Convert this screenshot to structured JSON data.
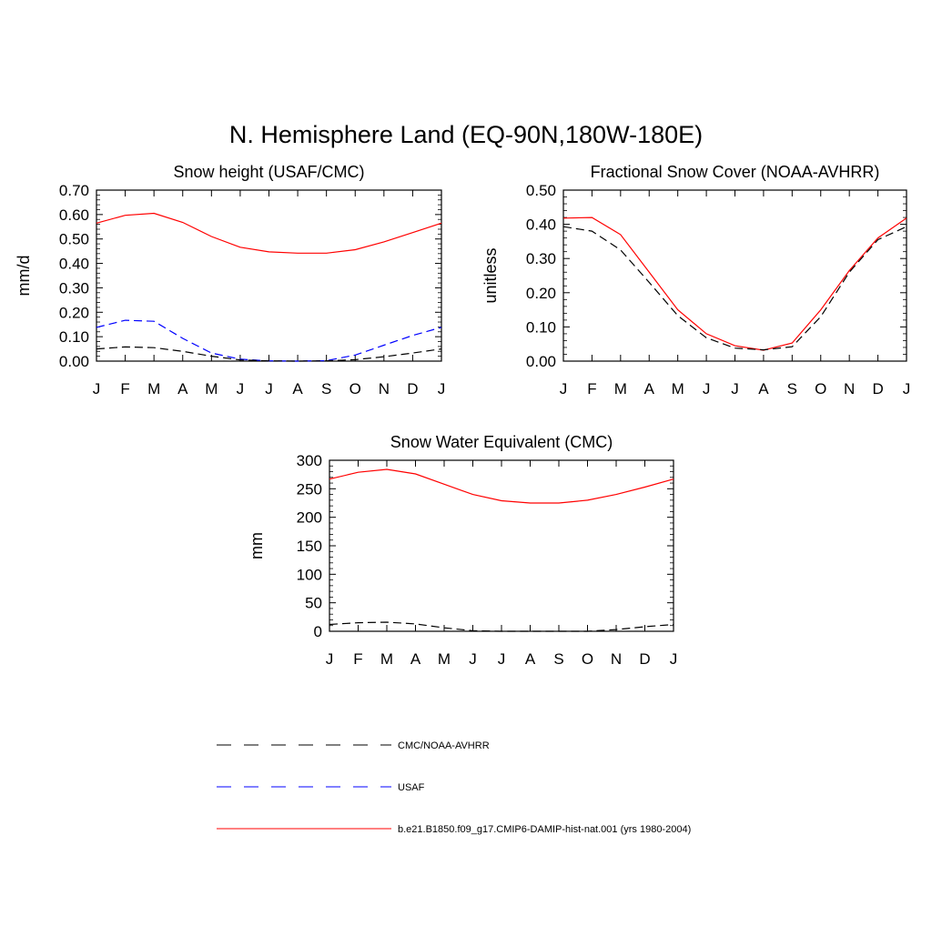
{
  "main_title": "N. Hemisphere Land (EQ-90N,180W-180E)",
  "month_labels": [
    "J",
    "F",
    "M",
    "A",
    "M",
    "J",
    "J",
    "A",
    "S",
    "O",
    "N",
    "D",
    "J"
  ],
  "legend": [
    {
      "label": "CMC/NOAA-AVHRR",
      "color": "#000000",
      "dashed": true
    },
    {
      "label": "USAF",
      "color": "#0000ff",
      "dashed": true
    },
    {
      "label": "b.e21.B1850.f09_g17.CMIP6-DAMIP-hist-nat.001 (yrs 1980-2004)",
      "color": "#ff0000",
      "dashed": false
    }
  ],
  "chart_data": [
    {
      "type": "line",
      "title": "Snow height (USAF/CMC)",
      "ylabel": "mm/d",
      "xlabel": "",
      "x": [
        "J",
        "F",
        "M",
        "A",
        "M",
        "J",
        "J",
        "A",
        "S",
        "O",
        "N",
        "D",
        "J"
      ],
      "ylim": [
        0,
        0.7
      ],
      "yticks": [
        "0.00",
        "0.10",
        "0.20",
        "0.30",
        "0.40",
        "0.50",
        "0.60",
        "0.70"
      ],
      "series": [
        {
          "name": "b.e21.B1850.f09_g17.CMIP6-DAMIP-hist-nat.001 (yrs 1980-2004)",
          "color": "#ff0000",
          "dashed": false,
          "values": [
            0.565,
            0.597,
            0.605,
            0.568,
            0.51,
            0.466,
            0.447,
            0.442,
            0.442,
            0.456,
            0.488,
            0.526,
            0.565
          ]
        },
        {
          "name": "USAF",
          "color": "#0000ff",
          "dashed": true,
          "values": [
            0.138,
            0.167,
            0.163,
            0.093,
            0.033,
            0.008,
            0.001,
            0.0,
            0.002,
            0.025,
            0.065,
            0.105,
            0.138
          ]
        },
        {
          "name": "CMC/NOAA-AVHRR",
          "color": "#000000",
          "dashed": true,
          "values": [
            0.05,
            0.058,
            0.055,
            0.04,
            0.02,
            0.005,
            0.001,
            0.0,
            0.001,
            0.006,
            0.018,
            0.033,
            0.05
          ]
        }
      ]
    },
    {
      "type": "line",
      "title": "Fractional Snow Cover (NOAA-AVHRR)",
      "ylabel": "unitless",
      "xlabel": "",
      "x": [
        "J",
        "F",
        "M",
        "A",
        "M",
        "J",
        "J",
        "A",
        "S",
        "O",
        "N",
        "D",
        "J"
      ],
      "ylim": [
        0,
        0.5
      ],
      "yticks": [
        "0.00",
        "0.10",
        "0.20",
        "0.30",
        "0.40",
        "0.50"
      ],
      "series": [
        {
          "name": "b.e21.B1850.f09_g17.CMIP6-DAMIP-hist-nat.001 (yrs 1980-2004)",
          "color": "#ff0000",
          "dashed": false,
          "values": [
            0.418,
            0.42,
            0.37,
            0.26,
            0.15,
            0.08,
            0.045,
            0.032,
            0.053,
            0.15,
            0.265,
            0.36,
            0.418
          ]
        },
        {
          "name": "CMC/NOAA-AVHRR",
          "color": "#000000",
          "dashed": true,
          "values": [
            0.393,
            0.38,
            0.325,
            0.23,
            0.133,
            0.068,
            0.038,
            0.033,
            0.042,
            0.13,
            0.26,
            0.355,
            0.393
          ]
        }
      ]
    },
    {
      "type": "line",
      "title": "Snow Water Equivalent (CMC)",
      "ylabel": "mm",
      "xlabel": "",
      "x": [
        "J",
        "F",
        "M",
        "A",
        "M",
        "J",
        "J",
        "A",
        "S",
        "O",
        "N",
        "D",
        "J"
      ],
      "ylim": [
        0,
        300
      ],
      "yticks": [
        "0",
        "50",
        "100",
        "150",
        "200",
        "250",
        "300"
      ],
      "series": [
        {
          "name": "b.e21.B1850.f09_g17.CMIP6-DAMIP-hist-nat.001 (yrs 1980-2004)",
          "color": "#ff0000",
          "dashed": false,
          "values": [
            267,
            279,
            284,
            276,
            258,
            240,
            229,
            225,
            225,
            230,
            240,
            253,
            267
          ]
        },
        {
          "name": "CMC/NOAA-AVHRR",
          "color": "#000000",
          "dashed": true,
          "values": [
            12,
            15,
            16,
            13,
            6,
            1,
            0,
            0,
            0,
            0,
            3,
            8,
            12
          ]
        }
      ]
    }
  ]
}
